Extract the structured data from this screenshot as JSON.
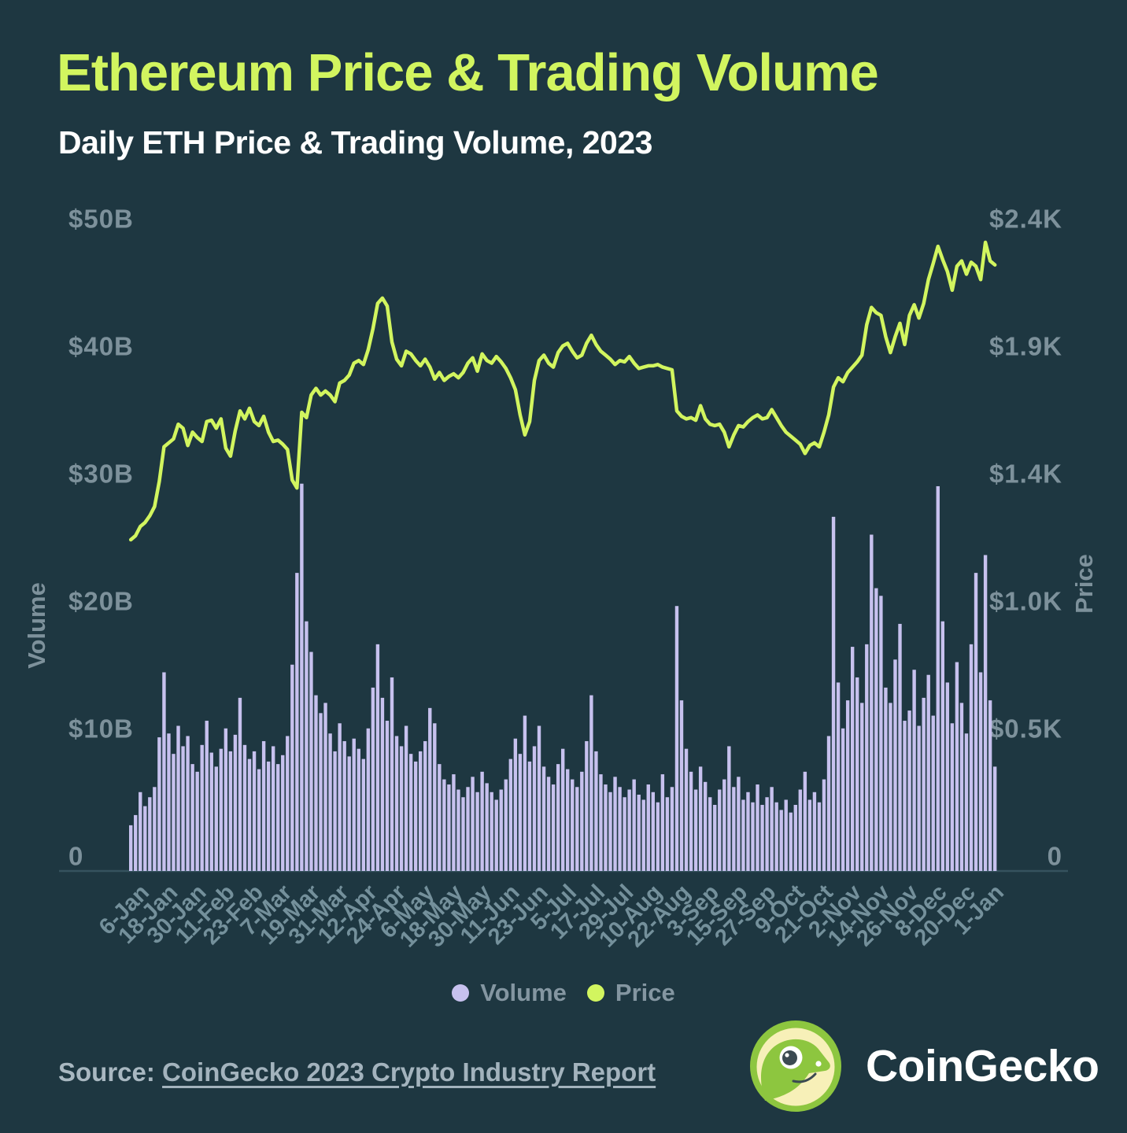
{
  "header": {
    "title": "Ethereum Price & Trading Volume",
    "subtitle": "Daily ETH Price & Trading Volume, 2023"
  },
  "colors": {
    "background": "#1e3741",
    "title": "#d2f55f",
    "subtitle": "#ffffff",
    "bar": "#c7c1ee",
    "line": "#d2f55f",
    "axis_text": "#7d919b",
    "x_axis_text": "#74909b",
    "legend_text": "#8496a1",
    "axis_line": "#35525e",
    "source_text": "#a9b8c1",
    "logo_green": "#8dc63f",
    "logo_cream": "#f7f0b8",
    "logo_eye": "#3b4a52"
  },
  "chart_data": {
    "type": "bar",
    "subtype": "combo-bar-line-dual-axis",
    "title": "Ethereum Price & Trading Volume",
    "subtitle": "Daily ETH Price & Trading Volume, 2023",
    "grid": false,
    "legend_position": "bottom-center",
    "x": {
      "unit": "date",
      "total_days": 366,
      "tick_labels": [
        "6-Jan",
        "18-Jan",
        "30-Jan",
        "11-Feb",
        "23-Feb",
        "7-Mar",
        "19-Mar",
        "31-Mar",
        "12-Apr",
        "24-Apr",
        "6-May",
        "18-May",
        "30-May",
        "11-Jun",
        "23-Jun",
        "5-Jul",
        "17-Jul",
        "29-Jul",
        "10-Aug",
        "22-Aug",
        "3-Sep",
        "15-Sep",
        "27-Sep",
        "9-Oct",
        "21-Oct",
        "2-Nov",
        "14-Nov",
        "26-Nov",
        "8-Dec",
        "20-Dec",
        "1-Jan"
      ],
      "tick_day_index": [
        5,
        17,
        29,
        41,
        53,
        65,
        77,
        89,
        101,
        113,
        125,
        137,
        149,
        161,
        173,
        185,
        197,
        209,
        221,
        233,
        245,
        257,
        269,
        281,
        293,
        305,
        317,
        329,
        341,
        353,
        365
      ]
    },
    "sampling": {
      "start_day": 0,
      "day_step": 2,
      "note": "values estimated from pixels at ~2-day resolution"
    },
    "y_left": {
      "label": "Volume",
      "tick_labels": [
        "$50B",
        "$40B",
        "$30B",
        "$20B",
        "$10B",
        "0"
      ],
      "range_billion_usd": [
        0,
        50
      ]
    },
    "y_right": {
      "label": "Price",
      "tick_labels": [
        "$2.4K",
        "$1.9K",
        "$1.4K",
        "$1.0K",
        "$0.5K",
        "0"
      ],
      "range_usd": [
        0,
        2400
      ]
    },
    "series": [
      {
        "name": "Volume",
        "type": "bar",
        "axis": "left",
        "unit": "billion USD",
        "color": "#c7c1ee",
        "values": [
          2.6,
          3.4,
          5.2,
          4.1,
          4.8,
          5.6,
          9.5,
          14.6,
          9.8,
          8.2,
          10.4,
          8.8,
          9.6,
          7.4,
          6.8,
          8.9,
          10.8,
          8.3,
          7.2,
          8.6,
          10.2,
          8.4,
          9.7,
          12.6,
          8.9,
          7.8,
          8.4,
          7.0,
          9.2,
          7.6,
          8.8,
          7.4,
          8.1,
          9.6,
          15.2,
          22.4,
          29.4,
          18.6,
          16.2,
          12.8,
          11.4,
          12.2,
          9.8,
          8.4,
          10.6,
          9.2,
          8.0,
          9.4,
          8.6,
          7.8,
          10.2,
          13.4,
          16.8,
          12.6,
          10.8,
          14.2,
          9.6,
          8.8,
          10.4,
          8.2,
          7.6,
          8.4,
          9.2,
          11.8,
          10.6,
          7.4,
          6.2,
          5.8,
          6.6,
          5.4,
          4.8,
          5.6,
          6.4,
          5.2,
          6.8,
          5.9,
          5.2,
          4.6,
          5.4,
          6.2,
          7.8,
          9.4,
          8.2,
          11.2,
          7.6,
          8.8,
          10.4,
          7.2,
          6.4,
          5.8,
          7.4,
          8.6,
          7.0,
          6.2,
          5.6,
          6.8,
          9.2,
          12.8,
          8.4,
          6.6,
          5.8,
          5.2,
          6.4,
          5.6,
          4.8,
          5.4,
          6.2,
          5.0,
          4.6,
          5.8,
          5.2,
          4.4,
          6.6,
          4.8,
          5.6,
          19.8,
          12.4,
          8.6,
          6.8,
          5.4,
          7.2,
          6.0,
          4.8,
          4.2,
          5.4,
          6.2,
          8.8,
          5.6,
          6.4,
          4.6,
          5.2,
          4.4,
          5.8,
          4.2,
          4.8,
          5.6,
          4.4,
          3.8,
          4.6,
          3.6,
          4.2,
          5.4,
          6.8,
          4.6,
          5.2,
          4.4,
          6.2,
          9.6,
          26.8,
          13.8,
          10.2,
          12.4,
          16.6,
          14.2,
          12.2,
          16.8,
          25.4,
          21.2,
          20.6,
          13.4,
          12.2,
          15.6,
          18.4,
          10.8,
          11.6,
          14.8,
          10.4,
          12.6,
          14.4,
          11.2,
          29.2,
          18.6,
          13.8,
          10.6,
          15.4,
          12.2,
          9.8,
          16.8,
          22.4,
          14.6,
          23.8,
          12.4,
          7.2
        ]
      },
      {
        "name": "Price",
        "type": "line",
        "axis": "right",
        "unit": "USD",
        "color": "#d2f55f",
        "values": [
          1200,
          1215,
          1250,
          1265,
          1290,
          1325,
          1420,
          1550,
          1565,
          1580,
          1635,
          1620,
          1555,
          1605,
          1585,
          1570,
          1645,
          1650,
          1620,
          1655,
          1545,
          1515,
          1610,
          1685,
          1655,
          1695,
          1645,
          1630,
          1665,
          1605,
          1570,
          1575,
          1560,
          1540,
          1425,
          1395,
          1680,
          1660,
          1745,
          1770,
          1745,
          1760,
          1745,
          1720,
          1790,
          1800,
          1820,
          1865,
          1875,
          1860,
          1915,
          1995,
          2090,
          2110,
          2080,
          1945,
          1880,
          1855,
          1910,
          1900,
          1875,
          1855,
          1880,
          1850,
          1805,
          1830,
          1800,
          1815,
          1825,
          1810,
          1830,
          1865,
          1885,
          1835,
          1900,
          1875,
          1865,
          1890,
          1870,
          1845,
          1810,
          1765,
          1670,
          1595,
          1645,
          1800,
          1875,
          1895,
          1865,
          1850,
          1905,
          1930,
          1940,
          1910,
          1885,
          1895,
          1940,
          1970,
          1935,
          1910,
          1895,
          1880,
          1860,
          1875,
          1870,
          1890,
          1865,
          1845,
          1850,
          1855,
          1855,
          1860,
          1850,
          1845,
          1840,
          1685,
          1665,
          1655,
          1660,
          1650,
          1705,
          1655,
          1635,
          1630,
          1635,
          1605,
          1550,
          1595,
          1630,
          1625,
          1645,
          1660,
          1670,
          1655,
          1660,
          1690,
          1660,
          1630,
          1605,
          1590,
          1575,
          1560,
          1525,
          1555,
          1565,
          1550,
          1605,
          1670,
          1775,
          1810,
          1795,
          1830,
          1850,
          1870,
          1895,
          2010,
          2075,
          2055,
          2045,
          1965,
          1905,
          1965,
          2015,
          1935,
          2045,
          2085,
          2035,
          2090,
          2180,
          2240,
          2305,
          2255,
          2210,
          2140,
          2230,
          2250,
          2200,
          2245,
          2230,
          2180,
          2320,
          2250,
          2235
        ]
      }
    ]
  },
  "legend": {
    "items": [
      {
        "label": "Volume",
        "color": "#c7c1ee"
      },
      {
        "label": "Price",
        "color": "#d2f55f"
      }
    ]
  },
  "footer": {
    "source_label": "Source:",
    "source_link_text": "CoinGecko 2023 Crypto Industry Report",
    "brand_name": "CoinGecko",
    "logo_icon": "coingecko-gecko-logo"
  }
}
